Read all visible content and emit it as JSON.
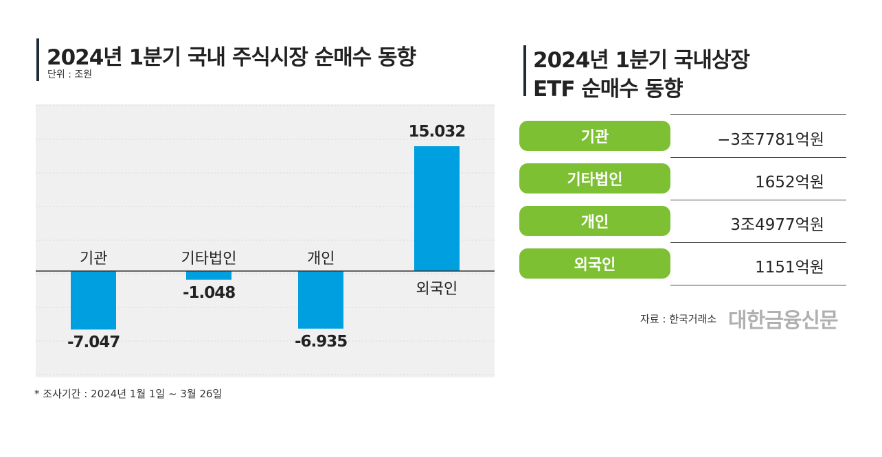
{
  "left_panel": {
    "title": "2024년 1분기 국내 주식시장 순매수 동향",
    "unit": "단위 : 조원",
    "footnote": "* 조사기간 : 2024년 1월 1일 ~ 3월 26일"
  },
  "right_panel": {
    "title_line1": "2024년 1분기 국내상장",
    "title_line2": "ETF 순매수 동향",
    "rows": [
      {
        "label": "기관",
        "value": "−3조7781억원"
      },
      {
        "label": "기타법인",
        "value": "1652억원"
      },
      {
        "label": "개인",
        "value": "3조4977억원"
      },
      {
        "label": "외국인",
        "value": "1151억원"
      }
    ],
    "source": "자료 : 한국거래소",
    "brand": "대한금융신문"
  },
  "colors": {
    "bar": "#009fe0",
    "pill": "#7dc033",
    "plot_bg": "#f0f0f0"
  },
  "chart_data": {
    "type": "bar",
    "categories": [
      "기관",
      "기타법인",
      "개인",
      "외국인"
    ],
    "values": [
      -7.047,
      -1.048,
      -6.935,
      15.032
    ],
    "value_labels": [
      "-7.047",
      "-1.048",
      "-6.935",
      "15.032"
    ],
    "title": "2024년 1분기 국내 주식시장 순매수 동향",
    "ylim": [
      -12,
      18
    ],
    "grid": true
  }
}
